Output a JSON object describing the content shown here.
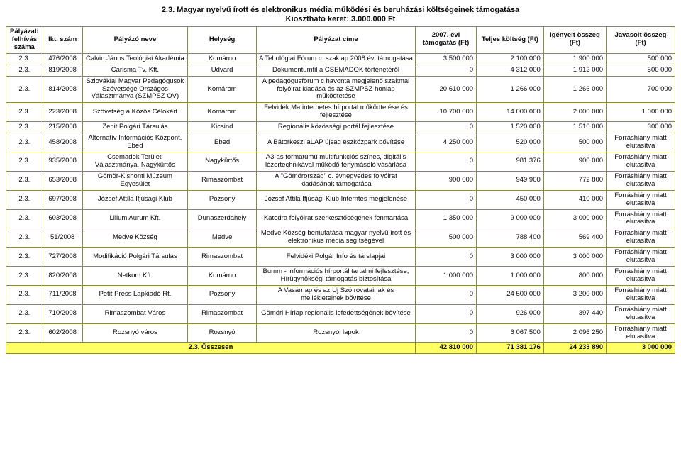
{
  "title": "2.3. Magyar nyelvű írott és elektronikus média működési és beruházási költségeinek támogatása",
  "subtitle": "Kiosztható keret: 3.000.000 Ft",
  "headers": {
    "p": "Pályázati felhívás száma",
    "ikt": "Ikt. szám",
    "nev": "Pályázó neve",
    "hely": "Helység",
    "cim": "Pályázat címe",
    "evitam": "2007. évi támogatás (Ft)",
    "teljes": "Teljes költség (Ft)",
    "igeny": "Igényelt összeg (Ft)",
    "javas": "Javasolt összeg (Ft)"
  },
  "rows": [
    {
      "p": "2.3.",
      "ikt": "476/2008",
      "nev": "Calvin János Teológiai Akadémia",
      "hely": "Komárno",
      "cim": "A Tehológiai Fórum c. szaklap 2008 évi támogatása",
      "evitam": "3 500 000",
      "teljes": "2 100 000",
      "igeny": "1 900 000",
      "javas": "500 000"
    },
    {
      "p": "2.3.",
      "ikt": "819/2008",
      "nev": "Carisma Tv, Kft.",
      "hely": "Udvard",
      "cim": "Dokumentumfil a CSEMADOK történetéről",
      "evitam": "0",
      "teljes": "4 312 000",
      "igeny": "1 912 000",
      "javas": "500 000"
    },
    {
      "p": "2.3.",
      "ikt": "814/2008",
      "nev": "Szlovákiai Magyar Pedagógusok Szövetsége Országos Választmánya (SZMPSZ OV)",
      "hely": "Komárom",
      "cim": "A pedagógusfórum c havonta megjelenő szakmai folyóirat kiadása és az SZMPSZ honlap működtetése",
      "evitam": "20 610 000",
      "teljes": "1 266 000",
      "igeny": "1 266 000",
      "javas": "700 000"
    },
    {
      "p": "2.3.",
      "ikt": "223/2008",
      "nev": "Szövetség a Közös Célokért",
      "hely": "Komárom",
      "cim": "Felvidék Ma internetes hírportál működtetése és fejlesztése",
      "evitam": "10 700 000",
      "teljes": "14 000 000",
      "igeny": "2 000 000",
      "javas": "1 000 000"
    },
    {
      "p": "2.3.",
      "ikt": "215/2008",
      "nev": "Zenit Polgári Társulás",
      "hely": "Kicsind",
      "cim": "Regionális közösségi portál fejlesztése",
      "evitam": "0",
      "teljes": "1 520 000",
      "igeny": "1 510 000",
      "javas": "300 000"
    },
    {
      "p": "2.3.",
      "ikt": "458/2008",
      "nev": "Alternatív Információs Központ, Ebed",
      "hely": "Ebed",
      "cim": "A Bátorkeszi aLAP újság eszközpark bővítése",
      "evitam": "4 250 000",
      "teljes": "520 000",
      "igeny": "500 000",
      "javas": "Forráshiány miatt elutasítva"
    },
    {
      "p": "2.3.",
      "ikt": "935/2008",
      "nev": "Csemadok Területi Választmánya, Nagykürtős",
      "hely": "Nagykürtős",
      "cim": "A3-as formátumú multifunkciós színes, digitális lézertechnikával működő fénymásoló vásárlása",
      "evitam": "0",
      "teljes": "981 376",
      "igeny": "900 000",
      "javas": "Forráshiány miatt elutasítva"
    },
    {
      "p": "2.3.",
      "ikt": "653/2008",
      "nev": "Gömör-Kishonti Múzeum Egyesület",
      "hely": "Rimaszombat",
      "cim": "A \"Gömörország\" c. évnegyedes folyóirat kiadásának támogatása",
      "evitam": "900 000",
      "teljes": "949 900",
      "igeny": "772 800",
      "javas": "Forráshiány miatt elutasítva"
    },
    {
      "p": "2.3.",
      "ikt": "697/2008",
      "nev": "József Attila Ifjúsági Klub",
      "hely": "Pozsony",
      "cim": "József Attila Ifjúsági Klub Interntes megjelenése",
      "evitam": "0",
      "teljes": "450 000",
      "igeny": "410 000",
      "javas": "Forráshiány miatt elutasítva"
    },
    {
      "p": "2.3.",
      "ikt": "603/2008",
      "nev": "Lilium Aurum Kft.",
      "hely": "Dunaszerdahely",
      "cim": "Katedra folyóirat szerkesztőségének fenntartása",
      "evitam": "1 350 000",
      "teljes": "9 000 000",
      "igeny": "3 000 000",
      "javas": "Forráshiány miatt elutasítva"
    },
    {
      "p": "2.3.",
      "ikt": "51/2008",
      "nev": "Medve Község",
      "hely": "Medve",
      "cim": "Medve Község bemutatása magyar nyelvű írott és elektronikus média segítségével",
      "evitam": "500 000",
      "teljes": "788 400",
      "igeny": "569 400",
      "javas": "Forráshiány miatt elutasítva"
    },
    {
      "p": "2.3.",
      "ikt": "727/2008",
      "nev": "Modifikáció Polgári Társulás",
      "hely": "Rimaszombat",
      "cim": "Felvidéki Polgár Info és társlapjai",
      "evitam": "0",
      "teljes": "3 000 000",
      "igeny": "3 000 000",
      "javas": "Forráshiány miatt elutasítva"
    },
    {
      "p": "2.3.",
      "ikt": "820/2008",
      "nev": "Netkom Kft.",
      "hely": "Komárno",
      "cim": "Bumm - információs hírportál tartalmi fejlesztése, Hírügynökségi támogatás biztosítása",
      "evitam": "1 000 000",
      "teljes": "1 000 000",
      "igeny": "800 000",
      "javas": "Forráshiány miatt elutasítva"
    },
    {
      "p": "2.3.",
      "ikt": "711/2008",
      "nev": "Petit Press Lapkiadó Rt.",
      "hely": "Pozsony",
      "cim": "A Vasárnap és az Új Szó rovatainak és mellékleteinek bővítése",
      "evitam": "0",
      "teljes": "24 500 000",
      "igeny": "3 200 000",
      "javas": "Forráshiány miatt elutasítva"
    },
    {
      "p": "2.3.",
      "ikt": "710/2008",
      "nev": "Rimaszombat Város",
      "hely": "Rimaszombat",
      "cim": "Gömöri Hírlap regionális lefedettségének bővítése",
      "evitam": "0",
      "teljes": "926 000",
      "igeny": "397 440",
      "javas": "Forráshiány miatt elutasítva"
    },
    {
      "p": "2.3.",
      "ikt": "602/2008",
      "nev": "Rozsnyó város",
      "hely": "Rozsnyó",
      "cim": "Rozsnyói lapok",
      "evitam": "0",
      "teljes": "6 067 500",
      "igeny": "2 096 250",
      "javas": "Forráshiány miatt elutasítva"
    }
  ],
  "totals": {
    "label": "2.3. Összesen",
    "evitam": "42 810 000",
    "teljes": "71 381 176",
    "igeny": "24 233 890",
    "javas": "3 000 000"
  }
}
